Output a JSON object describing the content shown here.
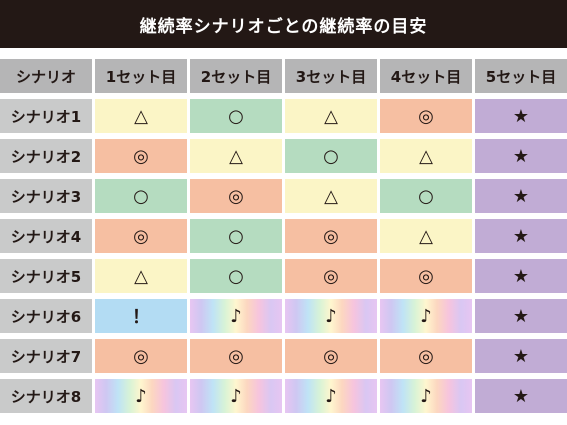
{
  "title": "継続率シナリオごとの継続率の目安",
  "colors": {
    "yellow": "#fbf5c6",
    "green": "#b5dcc0",
    "orange": "#f6bfa2",
    "blue": "#b3dcf3",
    "purple": "#c1acd5",
    "header_bg": "#231815"
  },
  "header": [
    "シナリオ",
    "1セット目",
    "2セット目",
    "3セット目",
    "4セット目",
    "5セット目"
  ],
  "rows": [
    {
      "name": "シナリオ1",
      "cells": [
        {
          "v": "△",
          "c": "yellow"
        },
        {
          "v": "○",
          "c": "green"
        },
        {
          "v": "△",
          "c": "yellow"
        },
        {
          "v": "◎",
          "c": "orange"
        },
        {
          "v": "★",
          "c": "purple"
        }
      ]
    },
    {
      "name": "シナリオ2",
      "cells": [
        {
          "v": "◎",
          "c": "orange"
        },
        {
          "v": "△",
          "c": "yellow"
        },
        {
          "v": "○",
          "c": "green"
        },
        {
          "v": "△",
          "c": "yellow"
        },
        {
          "v": "★",
          "c": "purple"
        }
      ]
    },
    {
      "name": "シナリオ3",
      "cells": [
        {
          "v": "○",
          "c": "green"
        },
        {
          "v": "◎",
          "c": "orange"
        },
        {
          "v": "△",
          "c": "yellow"
        },
        {
          "v": "○",
          "c": "green"
        },
        {
          "v": "★",
          "c": "purple"
        }
      ]
    },
    {
      "name": "シナリオ4",
      "cells": [
        {
          "v": "◎",
          "c": "orange"
        },
        {
          "v": "○",
          "c": "green"
        },
        {
          "v": "◎",
          "c": "orange"
        },
        {
          "v": "△",
          "c": "yellow"
        },
        {
          "v": "★",
          "c": "purple"
        }
      ]
    },
    {
      "name": "シナリオ5",
      "cells": [
        {
          "v": "△",
          "c": "yellow"
        },
        {
          "v": "○",
          "c": "green"
        },
        {
          "v": "◎",
          "c": "orange"
        },
        {
          "v": "◎",
          "c": "orange"
        },
        {
          "v": "★",
          "c": "purple"
        }
      ]
    },
    {
      "name": "シナリオ6",
      "cells": [
        {
          "v": "！",
          "c": "blue"
        },
        {
          "v": "♪",
          "c": "rainbow"
        },
        {
          "v": "♪",
          "c": "rainbow"
        },
        {
          "v": "♪",
          "c": "rainbow"
        },
        {
          "v": "★",
          "c": "purple"
        }
      ]
    },
    {
      "name": "シナリオ7",
      "cells": [
        {
          "v": "◎",
          "c": "orange"
        },
        {
          "v": "◎",
          "c": "orange"
        },
        {
          "v": "◎",
          "c": "orange"
        },
        {
          "v": "◎",
          "c": "orange"
        },
        {
          "v": "★",
          "c": "purple"
        }
      ]
    },
    {
      "name": "シナリオ8",
      "cells": [
        {
          "v": "♪",
          "c": "rainbow"
        },
        {
          "v": "♪",
          "c": "rainbow"
        },
        {
          "v": "♪",
          "c": "rainbow"
        },
        {
          "v": "♪",
          "c": "rainbow"
        },
        {
          "v": "★",
          "c": "purple"
        }
      ]
    }
  ]
}
